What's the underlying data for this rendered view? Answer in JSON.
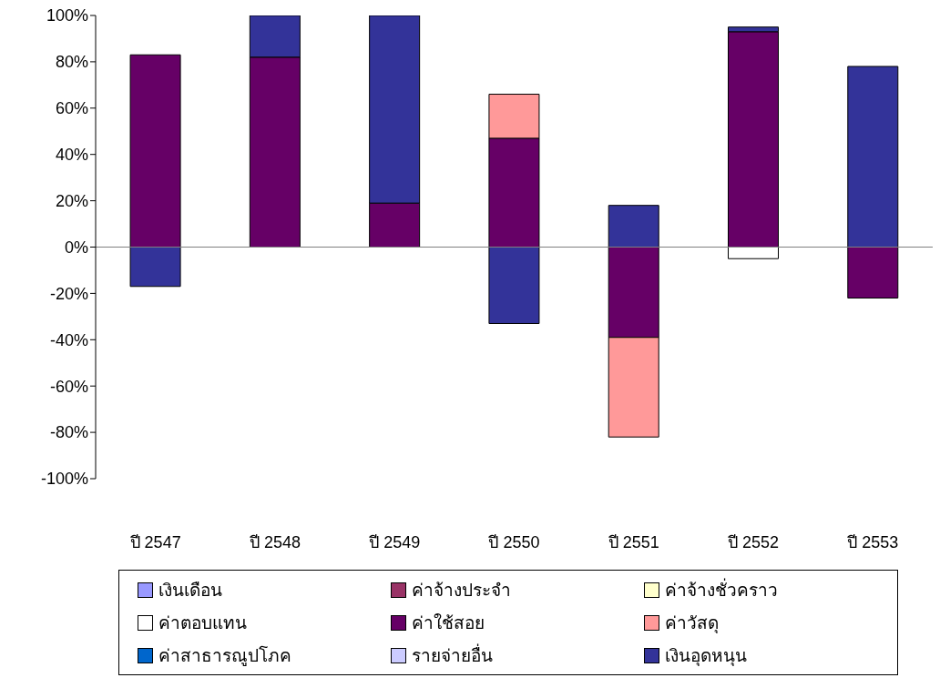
{
  "chart_data": {
    "type": "bar",
    "stacked": true,
    "categories": [
      "ปี 2547",
      "ปี 2548",
      "ปี 2549",
      "ปี 2550",
      "ปี 2551",
      "ปี 2552",
      "ปี 2553"
    ],
    "series": [
      {
        "name": "เงินเดือน",
        "color": "#9999ff",
        "values": [
          null,
          null,
          null,
          null,
          null,
          null,
          null
        ]
      },
      {
        "name": "ค่าจ้างประจำ",
        "color": "#993366",
        "values": [
          null,
          null,
          null,
          null,
          null,
          null,
          null
        ]
      },
      {
        "name": "ค่าจ้างชั่วคราว",
        "color": "#ffffcc",
        "values": [
          null,
          null,
          null,
          null,
          null,
          null,
          null
        ]
      },
      {
        "name": "ค่าตอบแทน",
        "color": "#ffffff",
        "values": [
          null,
          null,
          null,
          null,
          null,
          -5,
          null
        ]
      },
      {
        "name": "ค่าใช้สอย",
        "color": "#660066",
        "values": [
          83,
          82,
          19,
          47,
          -39,
          93,
          -22
        ]
      },
      {
        "name": "ค่าวัสดุ",
        "color": "#ff9999",
        "values": [
          null,
          null,
          null,
          19,
          -43,
          null,
          null
        ]
      },
      {
        "name": "ค่าสาธารณูปโภค",
        "color": "#0066cc",
        "values": [
          null,
          null,
          null,
          null,
          null,
          null,
          null
        ]
      },
      {
        "name": "รายจ่ายอื่น",
        "color": "#ccccff",
        "values": [
          null,
          null,
          null,
          null,
          null,
          null,
          null
        ]
      },
      {
        "name": "เงินอุดหนุน",
        "color": "#333399",
        "values": [
          -17,
          18,
          81,
          -33,
          18,
          2,
          78
        ]
      }
    ],
    "ylim": [
      -100,
      100
    ],
    "yticks": [
      {
        "value": -100,
        "label": "-100%"
      },
      {
        "value": -80,
        "label": "-80%"
      },
      {
        "value": -60,
        "label": "-60%"
      },
      {
        "value": -40,
        "label": "-40%"
      },
      {
        "value": -20,
        "label": "-20%"
      },
      {
        "value": 0,
        "label": "0%"
      },
      {
        "value": 20,
        "label": "20%"
      },
      {
        "value": 40,
        "label": "40%"
      },
      {
        "value": 60,
        "label": "60%"
      },
      {
        "value": 80,
        "label": "80%"
      },
      {
        "value": 100,
        "label": "100%"
      }
    ],
    "ref_lines": [
      {
        "axis": "y",
        "value": 0,
        "color": "#808080"
      }
    ],
    "grid": false,
    "legend": "bottom"
  }
}
